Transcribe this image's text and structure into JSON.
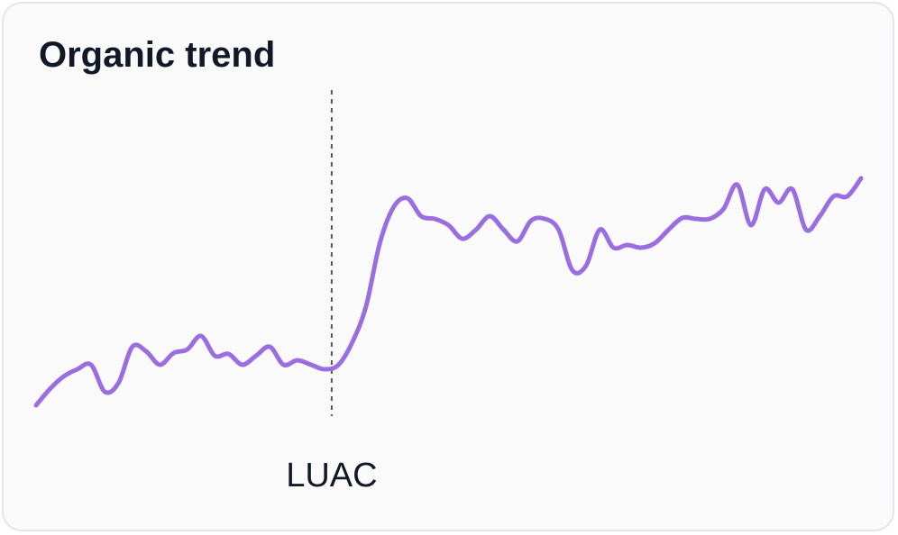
{
  "chart_data": {
    "type": "line",
    "title": "Organic trend",
    "color": "#9a6ee0",
    "values": [
      150,
      168,
      182,
      190,
      195,
      165,
      175,
      215,
      210,
      195,
      208,
      212,
      227,
      205,
      207,
      195,
      205,
      215,
      195,
      200,
      195,
      190,
      195,
      220,
      260,
      330,
      370,
      380,
      360,
      357,
      350,
      335,
      345,
      360,
      345,
      332,
      355,
      357,
      345,
      300,
      305,
      345,
      325,
      328,
      325,
      330,
      345,
      358,
      357,
      357,
      368,
      395,
      350,
      390,
      375,
      390,
      345,
      360,
      382,
      382,
      402
    ],
    "annotation": {
      "label": "LUAC",
      "x": 21.5
    }
  }
}
